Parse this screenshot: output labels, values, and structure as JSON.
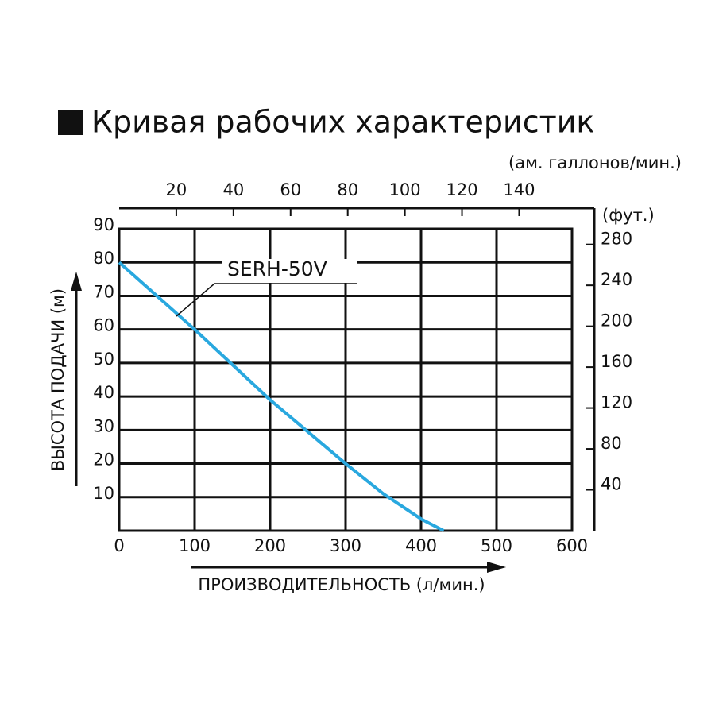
{
  "chart_data": {
    "type": "line",
    "title": "Кривая рабочих характеристик",
    "x_label": "ПРОИЗВОДИТЕЛЬНОСТЬ (л/мин.)",
    "y_label": "ВЫСОТА ПОДАЧИ (м)",
    "x2_label": "(ам. галлонов/мин.)",
    "y2_label": "(фут.)",
    "xlim": [
      0,
      600
    ],
    "xticks": [
      0,
      100,
      200,
      300,
      400,
      500,
      600
    ],
    "ylim": [
      0,
      90
    ],
    "yticks": [
      10,
      20,
      30,
      40,
      50,
      60,
      70,
      80,
      90
    ],
    "x2lim": [
      0,
      158.5
    ],
    "x2ticks": [
      20,
      40,
      60,
      80,
      100,
      120,
      140
    ],
    "y2lim": [
      0,
      295.3
    ],
    "y2ticks": [
      40,
      80,
      120,
      160,
      200,
      240,
      280
    ],
    "grid": true,
    "x": [
      0,
      50,
      100,
      150,
      200,
      250,
      300,
      350,
      400,
      430
    ],
    "series": [
      {
        "name": "SERH-50V",
        "color": "#29a8df",
        "values": [
          80,
          70,
          60,
          49.5,
          39,
          29.5,
          20,
          11,
          3.5,
          0
        ]
      }
    ]
  }
}
